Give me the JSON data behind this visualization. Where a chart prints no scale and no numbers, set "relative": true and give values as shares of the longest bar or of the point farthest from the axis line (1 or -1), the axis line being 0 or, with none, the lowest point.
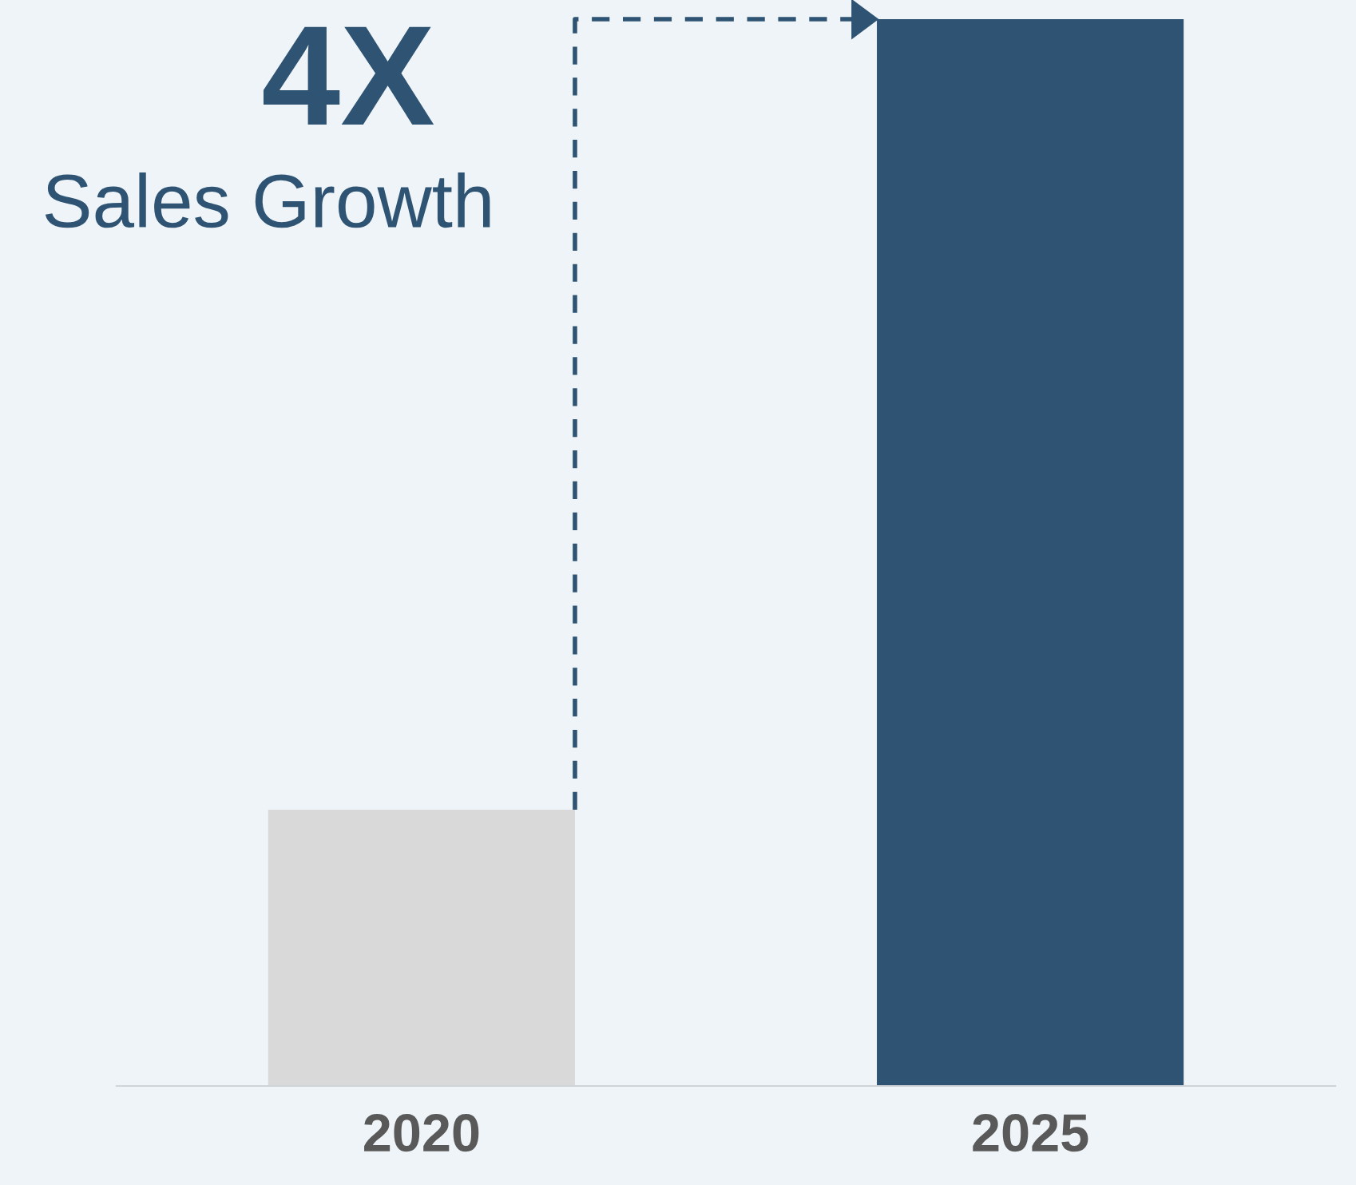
{
  "chart_data": {
    "type": "bar",
    "relative": true,
    "categories": [
      "2020",
      "2025"
    ],
    "values": [
      0.259,
      1
    ],
    "colors": [
      "#d9d9d9",
      "#2f5473"
    ],
    "annotations": [
      "4X",
      "Sales Growth"
    ],
    "grid": false,
    "legend": false
  }
}
